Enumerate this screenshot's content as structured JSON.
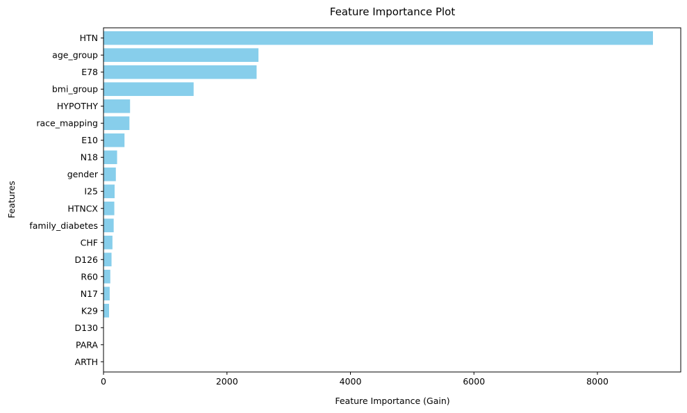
{
  "chart_data": {
    "type": "bar",
    "orientation": "horizontal",
    "title": "Feature Importance Plot",
    "xlabel": "Feature Importance (Gain)",
    "ylabel": "Features",
    "categories": [
      "HTN",
      "age_group",
      "E78",
      "bmi_group",
      "HYPOTHY",
      "race_mapping",
      "E10",
      "N18",
      "gender",
      "I25",
      "HTNCX",
      "family_diabetes",
      "CHF",
      "D126",
      "R60",
      "N17",
      "K29",
      "D130",
      "PARA",
      "ARTH"
    ],
    "values": [
      8900,
      2510,
      2480,
      1460,
      430,
      420,
      340,
      220,
      200,
      180,
      175,
      165,
      145,
      130,
      110,
      100,
      90,
      0,
      0,
      0
    ],
    "xlim": [
      0,
      9350
    ],
    "xticks": [
      0,
      2000,
      4000,
      6000,
      8000
    ],
    "bar_color": "#87ceeb",
    "grid": false,
    "legend": "none"
  }
}
